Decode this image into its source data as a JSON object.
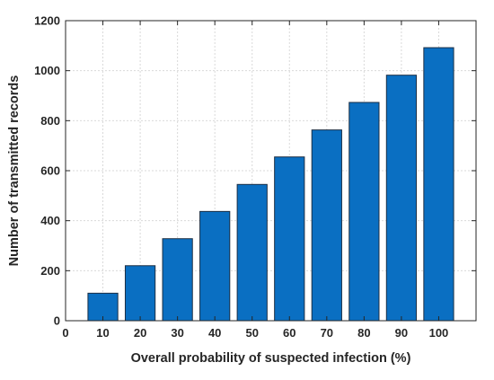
{
  "chart_data": {
    "type": "bar",
    "categories": [
      "10",
      "20",
      "30",
      "40",
      "50",
      "60",
      "70",
      "80",
      "90",
      "100"
    ],
    "x": [
      10,
      20,
      30,
      40,
      50,
      60,
      70,
      80,
      90,
      100
    ],
    "values": [
      110,
      220,
      328,
      437,
      545,
      655,
      763,
      873,
      982,
      1092
    ],
    "title": "",
    "xlabel": "Overall probability of suspected infection (%)",
    "ylabel": "Number of transmitted records",
    "xlim": [
      0,
      110
    ],
    "ylim": [
      0,
      1200
    ],
    "x_ticks": [
      0,
      10,
      20,
      30,
      40,
      50,
      60,
      70,
      80,
      90,
      100
    ],
    "y_ticks": [
      0,
      200,
      400,
      600,
      800,
      1000,
      1200
    ],
    "bar_color": "#0a6fc2",
    "grid": true,
    "legend": "none"
  }
}
